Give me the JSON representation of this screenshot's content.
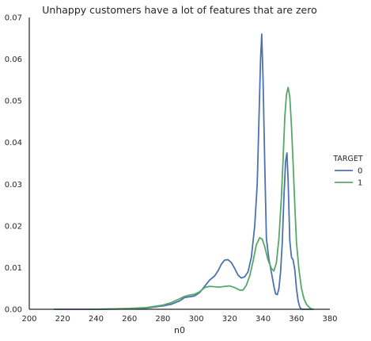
{
  "chart_data": {
    "type": "line",
    "title": "Unhappy customers have a lot of features that are zero",
    "xlabel": "n0",
    "ylabel": "",
    "xlim": [
      200,
      380
    ],
    "ylim": [
      0,
      0.07
    ],
    "x_ticks": [
      "200",
      "220",
      "240",
      "260",
      "280",
      "300",
      "320",
      "340",
      "360",
      "380"
    ],
    "y_ticks": [
      "0.00",
      "0.01",
      "0.02",
      "0.03",
      "0.04",
      "0.05",
      "0.06",
      "0.07"
    ],
    "grid": false,
    "legend_title": "TARGET",
    "legend_position": "right",
    "series": [
      {
        "name": "0",
        "color": "#4c72b0",
        "points": [
          [
            215,
            0.0
          ],
          [
            240,
            0.0
          ],
          [
            260,
            0.0001
          ],
          [
            270,
            0.0003
          ],
          [
            280,
            0.0008
          ],
          [
            285,
            0.0012
          ],
          [
            290,
            0.002
          ],
          [
            293,
            0.0028
          ],
          [
            296,
            0.003
          ],
          [
            299,
            0.0032
          ],
          [
            302,
            0.004
          ],
          [
            305,
            0.0055
          ],
          [
            308,
            0.007
          ],
          [
            311,
            0.008
          ],
          [
            313,
            0.0092
          ],
          [
            315,
            0.0108
          ],
          [
            317,
            0.0118
          ],
          [
            319,
            0.0119
          ],
          [
            321,
            0.0112
          ],
          [
            323,
            0.0098
          ],
          [
            325,
            0.0082
          ],
          [
            327,
            0.0075
          ],
          [
            329,
            0.0078
          ],
          [
            331,
            0.009
          ],
          [
            333,
            0.0125
          ],
          [
            335,
            0.02
          ],
          [
            336.5,
            0.03
          ],
          [
            337.5,
            0.045
          ],
          [
            338.5,
            0.06
          ],
          [
            339.2,
            0.066
          ],
          [
            340,
            0.055
          ],
          [
            341,
            0.035
          ],
          [
            342,
            0.017
          ],
          [
            343.5,
            0.012
          ],
          [
            345,
            0.0088
          ],
          [
            346.5,
            0.0055
          ],
          [
            347.5,
            0.0037
          ],
          [
            348.5,
            0.0035
          ],
          [
            349.5,
            0.005
          ],
          [
            350.5,
            0.009
          ],
          [
            351.5,
            0.016
          ],
          [
            352.5,
            0.027
          ],
          [
            353.5,
            0.0355
          ],
          [
            354.3,
            0.0375
          ],
          [
            355,
            0.031
          ],
          [
            356,
            0.0165
          ],
          [
            357,
            0.0125
          ],
          [
            358,
            0.0118
          ],
          [
            359,
            0.0095
          ],
          [
            360,
            0.005
          ],
          [
            361,
            0.002
          ],
          [
            362,
            0.0005
          ],
          [
            363,
            0.0
          ],
          [
            370,
            0.0
          ]
        ]
      },
      {
        "name": "1",
        "color": "#55a868",
        "points": [
          [
            235,
            0.0
          ],
          [
            250,
            0.0001
          ],
          [
            260,
            0.0002
          ],
          [
            270,
            0.0004
          ],
          [
            280,
            0.001
          ],
          [
            285,
            0.0016
          ],
          [
            290,
            0.0025
          ],
          [
            293,
            0.0031
          ],
          [
            296,
            0.0034
          ],
          [
            299,
            0.0036
          ],
          [
            302,
            0.0042
          ],
          [
            305,
            0.0052
          ],
          [
            308,
            0.0055
          ],
          [
            311,
            0.0054
          ],
          [
            314,
            0.0053
          ],
          [
            317,
            0.0055
          ],
          [
            320,
            0.0056
          ],
          [
            323,
            0.0052
          ],
          [
            326,
            0.0046
          ],
          [
            328,
            0.0046
          ],
          [
            330,
            0.0058
          ],
          [
            332,
            0.008
          ],
          [
            334,
            0.0115
          ],
          [
            336,
            0.0155
          ],
          [
            338,
            0.0172
          ],
          [
            339.5,
            0.0168
          ],
          [
            341,
            0.015
          ],
          [
            343,
            0.0118
          ],
          [
            345,
            0.0098
          ],
          [
            346.5,
            0.0092
          ],
          [
            348,
            0.0112
          ],
          [
            349.5,
            0.017
          ],
          [
            351,
            0.027
          ],
          [
            352,
            0.036
          ],
          [
            353,
            0.046
          ],
          [
            354,
            0.0515
          ],
          [
            355,
            0.0532
          ],
          [
            356,
            0.051
          ],
          [
            357,
            0.044
          ],
          [
            358,
            0.035
          ],
          [
            359,
            0.025
          ],
          [
            360,
            0.016
          ],
          [
            361.5,
            0.0095
          ],
          [
            363,
            0.005
          ],
          [
            364.5,
            0.0025
          ],
          [
            366,
            0.0012
          ],
          [
            367.5,
            0.0005
          ],
          [
            369,
            0.0001
          ],
          [
            370,
            0.0
          ]
        ]
      }
    ]
  }
}
